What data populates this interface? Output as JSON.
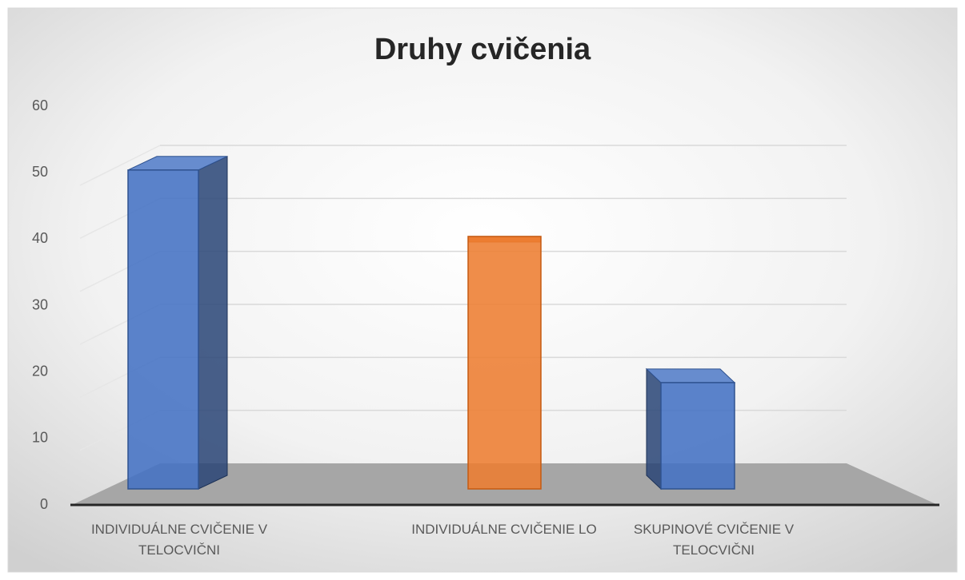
{
  "chart_data": {
    "type": "bar3d",
    "title": "Druhy cvičenia",
    "categories": [
      "INDIVIDUÁLNE CVIČENIE V TELOCVIČNI",
      "INDIVIDUÁLNE CVIČENIE LO",
      "SKUPINOVÉ CVIČENIE V TELOCVIČNI"
    ],
    "values": [
      48,
      38,
      16
    ],
    "colors": [
      "#4472c4",
      "#ed7d31",
      "#4472c4"
    ],
    "ylim": [
      0,
      60
    ],
    "yticks": [
      0,
      10,
      20,
      30,
      40,
      50,
      60
    ],
    "grid": true
  }
}
